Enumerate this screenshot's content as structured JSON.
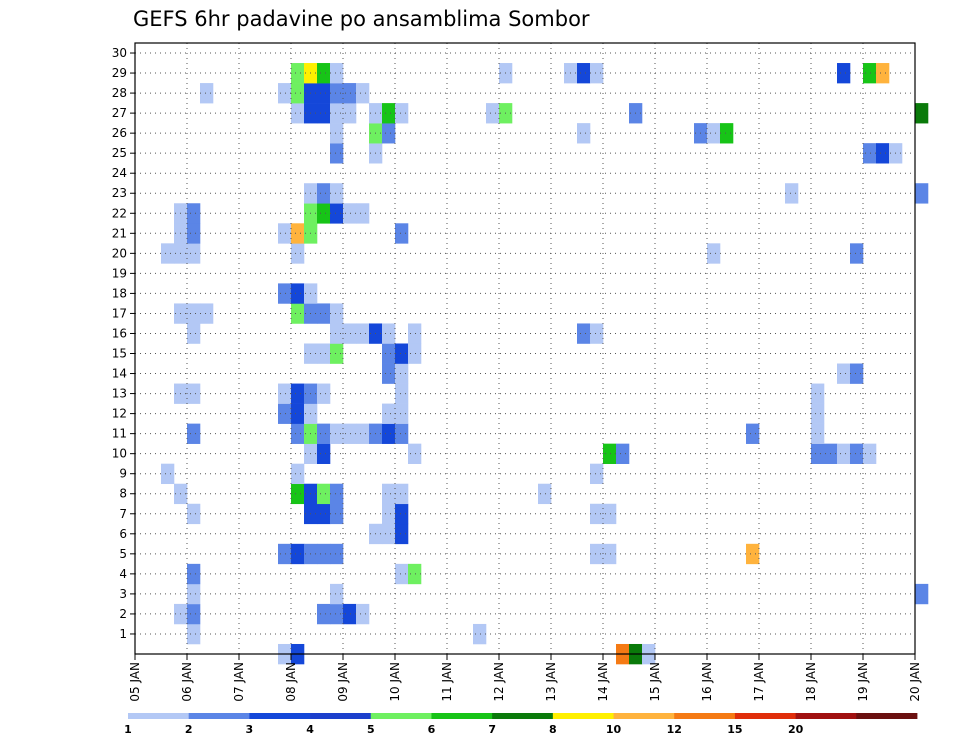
{
  "chart_data": {
    "type": "heatmap",
    "title": "GEFS 6hr padavine po ansamblima Sombor",
    "xlabel": "",
    "ylabel": "",
    "x_tick_labels": [
      "05 JAN",
      "06 JAN",
      "07 JAN",
      "08 JAN",
      "09 JAN",
      "10 JAN",
      "11 JAN",
      "12 JAN",
      "13 JAN",
      "14 JAN",
      "15 JAN",
      "16 JAN",
      "17 JAN",
      "18 JAN",
      "19 JAN",
      "20 JAN"
    ],
    "y_tick_labels": [
      "1",
      "2",
      "3",
      "4",
      "5",
      "6",
      "7",
      "8",
      "9",
      "10",
      "11",
      "12",
      "13",
      "14",
      "15",
      "16",
      "17",
      "18",
      "19",
      "20",
      "21",
      "22",
      "23",
      "24",
      "25",
      "26",
      "27",
      "28",
      "29",
      "30"
    ],
    "xlim": [
      "05 JAN 00",
      "20 JAN 00"
    ],
    "time_step_hours": 6,
    "ylim": [
      0,
      30
    ],
    "grid": true,
    "legend": {
      "placement": "bottom",
      "levels": [
        "1",
        "2",
        "3",
        "4",
        "5",
        "6",
        "7",
        "8",
        "10",
        "12",
        "15",
        "20"
      ],
      "colors": [
        "#b3c8f5",
        "#5b85e6",
        "#1447d9",
        "#1c3fcc",
        "#6ef060",
        "#17c417",
        "#0a7a0a",
        "#fff000",
        "#ffb33d",
        "#f57a14",
        "#e02d0a",
        "#a01010",
        "#6a0f0f"
      ]
    },
    "colors": {
      "1": "#b3c8f5",
      "2": "#5b85e6",
      "3": "#1447d9",
      "4": "#6ef060",
      "5": "#17c417",
      "6": "#0a7a0a",
      "7": "#fff000",
      "8": "#ffb33d",
      "10": "#f57a14"
    },
    "cells_format": "[member, date_hour, level]",
    "cells": [
      [
        0,
        "07 JAN 18",
        1
      ],
      [
        0,
        "08 JAN 00",
        3
      ],
      [
        0,
        "14 JAN 06",
        10
      ],
      [
        0,
        "14 JAN 12",
        6
      ],
      [
        0,
        "14 JAN 18",
        1
      ],
      [
        1,
        "06 JAN 00",
        1
      ],
      [
        1,
        "11 JAN 12",
        1
      ],
      [
        2,
        "05 JAN 18",
        1
      ],
      [
        2,
        "06 JAN 00",
        2
      ],
      [
        2,
        "08 JAN 12",
        2
      ],
      [
        2,
        "08 JAN 18",
        2
      ],
      [
        2,
        "09 JAN 00",
        3
      ],
      [
        2,
        "09 JAN 06",
        1
      ],
      [
        3,
        "06 JAN 00",
        1
      ],
      [
        3,
        "08 JAN 18",
        1
      ],
      [
        3,
        "20 JAN 00",
        2
      ],
      [
        4,
        "06 JAN 00",
        2
      ],
      [
        4,
        "10 JAN 00",
        1
      ],
      [
        4,
        "10 JAN 06",
        4
      ],
      [
        5,
        "07 JAN 18",
        2
      ],
      [
        5,
        "08 JAN 00",
        3
      ],
      [
        5,
        "08 JAN 06",
        2
      ],
      [
        5,
        "08 JAN 12",
        2
      ],
      [
        5,
        "08 JAN 18",
        2
      ],
      [
        5,
        "13 JAN 18",
        1
      ],
      [
        5,
        "14 JAN 00",
        1
      ],
      [
        5,
        "16 JAN 18",
        8
      ],
      [
        6,
        "09 JAN 12",
        1
      ],
      [
        6,
        "09 JAN 18",
        1
      ],
      [
        6,
        "10 JAN 00",
        3
      ],
      [
        7,
        "06 JAN 00",
        1
      ],
      [
        7,
        "08 JAN 06",
        3
      ],
      [
        7,
        "08 JAN 12",
        3
      ],
      [
        7,
        "08 JAN 18",
        2
      ],
      [
        7,
        "09 JAN 18",
        1
      ],
      [
        7,
        "10 JAN 00",
        3
      ],
      [
        7,
        "13 JAN 18",
        1
      ],
      [
        7,
        "14 JAN 00",
        1
      ],
      [
        8,
        "05 JAN 18",
        1
      ],
      [
        8,
        "08 JAN 00",
        5
      ],
      [
        8,
        "08 JAN 06",
        3
      ],
      [
        8,
        "08 JAN 12",
        4
      ],
      [
        8,
        "08 JAN 18",
        2
      ],
      [
        8,
        "09 JAN 18",
        1
      ],
      [
        8,
        "10 JAN 00",
        1
      ],
      [
        8,
        "12 JAN 18",
        1
      ],
      [
        9,
        "05 JAN 12",
        1
      ],
      [
        9,
        "08 JAN 00",
        1
      ],
      [
        9,
        "13 JAN 18",
        1
      ],
      [
        10,
        "08 JAN 06",
        1
      ],
      [
        10,
        "08 JAN 12",
        3
      ],
      [
        10,
        "10 JAN 06",
        1
      ],
      [
        10,
        "14 JAN 00",
        5
      ],
      [
        10,
        "14 JAN 06",
        2
      ],
      [
        10,
        "18 JAN 00",
        2
      ],
      [
        10,
        "18 JAN 06",
        2
      ],
      [
        10,
        "18 JAN 12",
        1
      ],
      [
        10,
        "18 JAN 18",
        2
      ],
      [
        10,
        "19 JAN 00",
        1
      ],
      [
        11,
        "06 JAN 00",
        2
      ],
      [
        11,
        "08 JAN 00",
        2
      ],
      [
        11,
        "08 JAN 06",
        4
      ],
      [
        11,
        "08 JAN 12",
        2
      ],
      [
        11,
        "08 JAN 18",
        1
      ],
      [
        11,
        "09 JAN 00",
        1
      ],
      [
        11,
        "09 JAN 06",
        1
      ],
      [
        11,
        "09 JAN 12",
        2
      ],
      [
        11,
        "09 JAN 18",
        3
      ],
      [
        11,
        "10 JAN 00",
        2
      ],
      [
        11,
        "16 JAN 18",
        2
      ],
      [
        11,
        "18 JAN 00",
        1
      ],
      [
        12,
        "07 JAN 18",
        2
      ],
      [
        12,
        "08 JAN 00",
        3
      ],
      [
        12,
        "08 JAN 06",
        1
      ],
      [
        12,
        "09 JAN 18",
        1
      ],
      [
        12,
        "10 JAN 00",
        1
      ],
      [
        12,
        "18 JAN 00",
        1
      ],
      [
        13,
        "05 JAN 18",
        1
      ],
      [
        13,
        "06 JAN 00",
        1
      ],
      [
        13,
        "07 JAN 18",
        1
      ],
      [
        13,
        "08 JAN 00",
        3
      ],
      [
        13,
        "08 JAN 06",
        2
      ],
      [
        13,
        "08 JAN 12",
        1
      ],
      [
        13,
        "10 JAN 00",
        1
      ],
      [
        13,
        "18 JAN 00",
        1
      ],
      [
        14,
        "09 JAN 18",
        2
      ],
      [
        14,
        "10 JAN 00",
        1
      ],
      [
        14,
        "18 JAN 12",
        1
      ],
      [
        14,
        "18 JAN 18",
        2
      ],
      [
        15,
        "08 JAN 06",
        1
      ],
      [
        15,
        "08 JAN 12",
        1
      ],
      [
        15,
        "08 JAN 18",
        4
      ],
      [
        15,
        "09 JAN 18",
        2
      ],
      [
        15,
        "10 JAN 00",
        3
      ],
      [
        15,
        "10 JAN 06",
        1
      ],
      [
        16,
        "06 JAN 00",
        1
      ],
      [
        16,
        "08 JAN 18",
        1
      ],
      [
        16,
        "09 JAN 00",
        1
      ],
      [
        16,
        "09 JAN 06",
        1
      ],
      [
        16,
        "09 JAN 12",
        3
      ],
      [
        16,
        "09 JAN 18",
        1
      ],
      [
        16,
        "10 JAN 06",
        1
      ],
      [
        16,
        "13 JAN 12",
        2
      ],
      [
        16,
        "13 JAN 18",
        1
      ],
      [
        17,
        "05 JAN 18",
        1
      ],
      [
        17,
        "06 JAN 00",
        1
      ],
      [
        17,
        "06 JAN 06",
        1
      ],
      [
        17,
        "08 JAN 00",
        4
      ],
      [
        17,
        "08 JAN 06",
        2
      ],
      [
        17,
        "08 JAN 12",
        2
      ],
      [
        17,
        "08 JAN 18",
        1
      ],
      [
        18,
        "07 JAN 18",
        2
      ],
      [
        18,
        "08 JAN 00",
        3
      ],
      [
        18,
        "08 JAN 06",
        1
      ],
      [
        20,
        "05 JAN 12",
        1
      ],
      [
        20,
        "05 JAN 18",
        1
      ],
      [
        20,
        "06 JAN 00",
        1
      ],
      [
        20,
        "08 JAN 00",
        1
      ],
      [
        20,
        "16 JAN 00",
        1
      ],
      [
        20,
        "18 JAN 18",
        2
      ],
      [
        21,
        "05 JAN 18",
        1
      ],
      [
        21,
        "06 JAN 00",
        2
      ],
      [
        21,
        "07 JAN 18",
        1
      ],
      [
        21,
        "08 JAN 00",
        8
      ],
      [
        21,
        "08 JAN 06",
        4
      ],
      [
        21,
        "10 JAN 00",
        2
      ],
      [
        22,
        "05 JAN 18",
        1
      ],
      [
        22,
        "06 JAN 00",
        2
      ],
      [
        22,
        "08 JAN 06",
        4
      ],
      [
        22,
        "08 JAN 12",
        5
      ],
      [
        22,
        "08 JAN 18",
        3
      ],
      [
        22,
        "09 JAN 00",
        1
      ],
      [
        22,
        "09 JAN 06",
        1
      ],
      [
        23,
        "08 JAN 06",
        1
      ],
      [
        23,
        "08 JAN 12",
        2
      ],
      [
        23,
        "08 JAN 18",
        1
      ],
      [
        23,
        "17 JAN 12",
        1
      ],
      [
        23,
        "20 JAN 00",
        2
      ],
      [
        25,
        "08 JAN 18",
        2
      ],
      [
        25,
        "09 JAN 12",
        1
      ],
      [
        25,
        "19 JAN 00",
        2
      ],
      [
        25,
        "19 JAN 06",
        3
      ],
      [
        25,
        "19 JAN 12",
        1
      ],
      [
        26,
        "08 JAN 18",
        1
      ],
      [
        26,
        "09 JAN 12",
        4
      ],
      [
        26,
        "09 JAN 18",
        2
      ],
      [
        26,
        "13 JAN 12",
        1
      ],
      [
        26,
        "15 JAN 18",
        2
      ],
      [
        26,
        "16 JAN 00",
        1
      ],
      [
        26,
        "16 JAN 06",
        5
      ],
      [
        27,
        "08 JAN 00",
        1
      ],
      [
        27,
        "08 JAN 06",
        3
      ],
      [
        27,
        "08 JAN 12",
        3
      ],
      [
        27,
        "08 JAN 18",
        1
      ],
      [
        27,
        "09 JAN 00",
        1
      ],
      [
        27,
        "09 JAN 12",
        1
      ],
      [
        27,
        "09 JAN 18",
        5
      ],
      [
        27,
        "10 JAN 00",
        1
      ],
      [
        27,
        "11 JAN 18",
        1
      ],
      [
        27,
        "12 JAN 00",
        4
      ],
      [
        27,
        "14 JAN 12",
        2
      ],
      [
        27,
        "20 JAN 00",
        6
      ],
      [
        28,
        "06 JAN 06",
        1
      ],
      [
        28,
        "07 JAN 18",
        1
      ],
      [
        28,
        "08 JAN 00",
        4
      ],
      [
        28,
        "08 JAN 06",
        3
      ],
      [
        28,
        "08 JAN 12",
        3
      ],
      [
        28,
        "08 JAN 18",
        2
      ],
      [
        28,
        "09 JAN 00",
        2
      ],
      [
        28,
        "09 JAN 06",
        1
      ],
      [
        29,
        "08 JAN 00",
        4
      ],
      [
        29,
        "08 JAN 06",
        7
      ],
      [
        29,
        "08 JAN 12",
        5
      ],
      [
        29,
        "08 JAN 18",
        1
      ],
      [
        29,
        "12 JAN 00",
        1
      ],
      [
        29,
        "13 JAN 06",
        1
      ],
      [
        29,
        "13 JAN 12",
        3
      ],
      [
        29,
        "13 JAN 18",
        1
      ],
      [
        29,
        "18 JAN 12",
        3
      ],
      [
        29,
        "19 JAN 00",
        5
      ],
      [
        29,
        "19 JAN 06",
        8
      ]
    ]
  }
}
